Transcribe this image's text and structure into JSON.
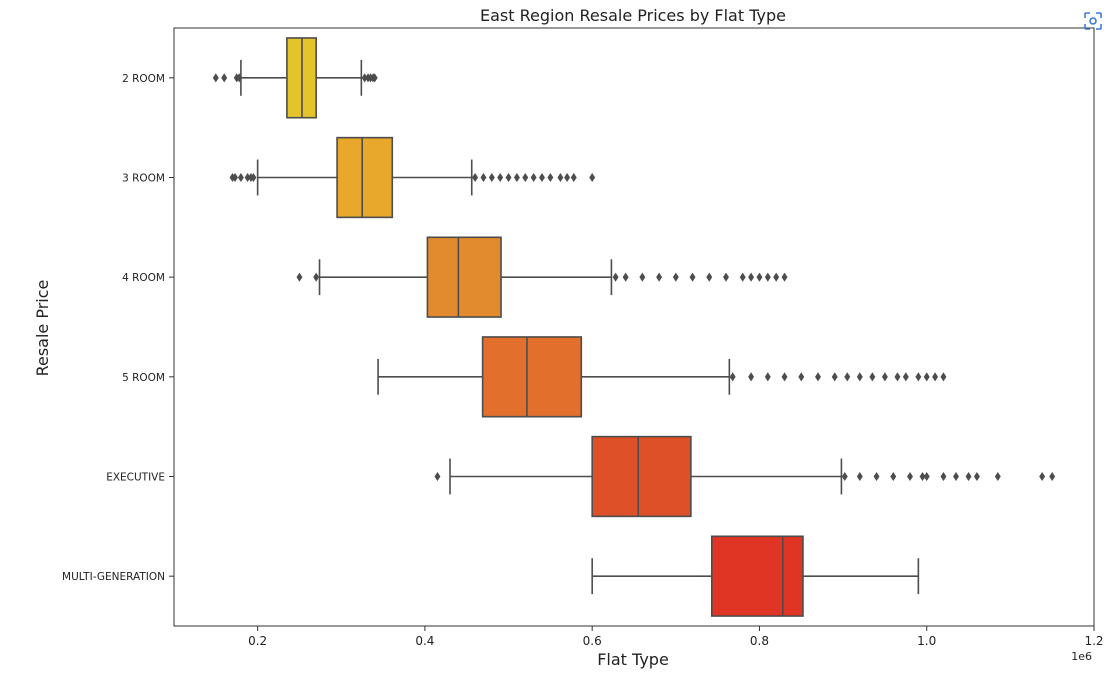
{
  "chart_data": {
    "type": "boxplot",
    "orientation": "horizontal",
    "title": "East Region Resale Prices by Flat Type",
    "xlabel": "Flat Type",
    "ylabel": "Resale Price",
    "xlim": [
      0.1,
      1.2
    ],
    "x_ticks": [
      0.2,
      0.4,
      0.6,
      0.8,
      1.0,
      1.2
    ],
    "x_tick_labels": [
      "0.2",
      "0.4",
      "0.6",
      "0.8",
      "1.0",
      "1.2"
    ],
    "x_offset_label": "1e6",
    "grid": false,
    "categories": [
      "2 ROOM",
      "3 ROOM",
      "4 ROOM",
      "5 ROOM",
      "EXECUTIVE",
      "MULTI-GENERATION"
    ],
    "colors": [
      "#e3c42b",
      "#e8a82c",
      "#e28a2e",
      "#e26f2c",
      "#de5128",
      "#e03425"
    ],
    "boxes": [
      {
        "category": "2 ROOM",
        "whisker_low": 0.18,
        "q1": 0.235,
        "median": 0.253,
        "q3": 0.27,
        "whisker_high": 0.324,
        "outliers": [
          0.15,
          0.16,
          0.175,
          0.178,
          0.328,
          0.332,
          0.335,
          0.338,
          0.34
        ]
      },
      {
        "category": "3 ROOM",
        "whisker_low": 0.2,
        "q1": 0.295,
        "median": 0.325,
        "q3": 0.361,
        "whisker_high": 0.456,
        "outliers": [
          0.17,
          0.173,
          0.18,
          0.188,
          0.192,
          0.195,
          0.46,
          0.47,
          0.48,
          0.49,
          0.5,
          0.51,
          0.52,
          0.53,
          0.54,
          0.55,
          0.562,
          0.57,
          0.578,
          0.6
        ]
      },
      {
        "category": "4 ROOM",
        "whisker_low": 0.274,
        "q1": 0.403,
        "median": 0.44,
        "q3": 0.491,
        "whisker_high": 0.623,
        "outliers": [
          0.25,
          0.27,
          0.628,
          0.64,
          0.66,
          0.68,
          0.7,
          0.72,
          0.74,
          0.76,
          0.78,
          0.79,
          0.8,
          0.81,
          0.82,
          0.83
        ]
      },
      {
        "category": "5 ROOM",
        "whisker_low": 0.344,
        "q1": 0.469,
        "median": 0.522,
        "q3": 0.587,
        "whisker_high": 0.764,
        "outliers": [
          0.768,
          0.79,
          0.81,
          0.83,
          0.85,
          0.87,
          0.89,
          0.905,
          0.92,
          0.935,
          0.95,
          0.965,
          0.975,
          0.99,
          1.0,
          1.01,
          1.02
        ]
      },
      {
        "category": "EXECUTIVE",
        "whisker_low": 0.43,
        "q1": 0.6,
        "median": 0.655,
        "q3": 0.718,
        "whisker_high": 0.898,
        "outliers": [
          0.415,
          0.902,
          0.92,
          0.94,
          0.96,
          0.98,
          0.995,
          1.0,
          1.02,
          1.035,
          1.05,
          1.06,
          1.085,
          1.138,
          1.15
        ]
      },
      {
        "category": "MULTI-GENERATION",
        "whisker_low": 0.6,
        "q1": 0.743,
        "median": 0.828,
        "q3": 0.852,
        "whisker_high": 0.99,
        "outliers": []
      }
    ]
  },
  "toolbar": {
    "icon": "focus-icon"
  }
}
